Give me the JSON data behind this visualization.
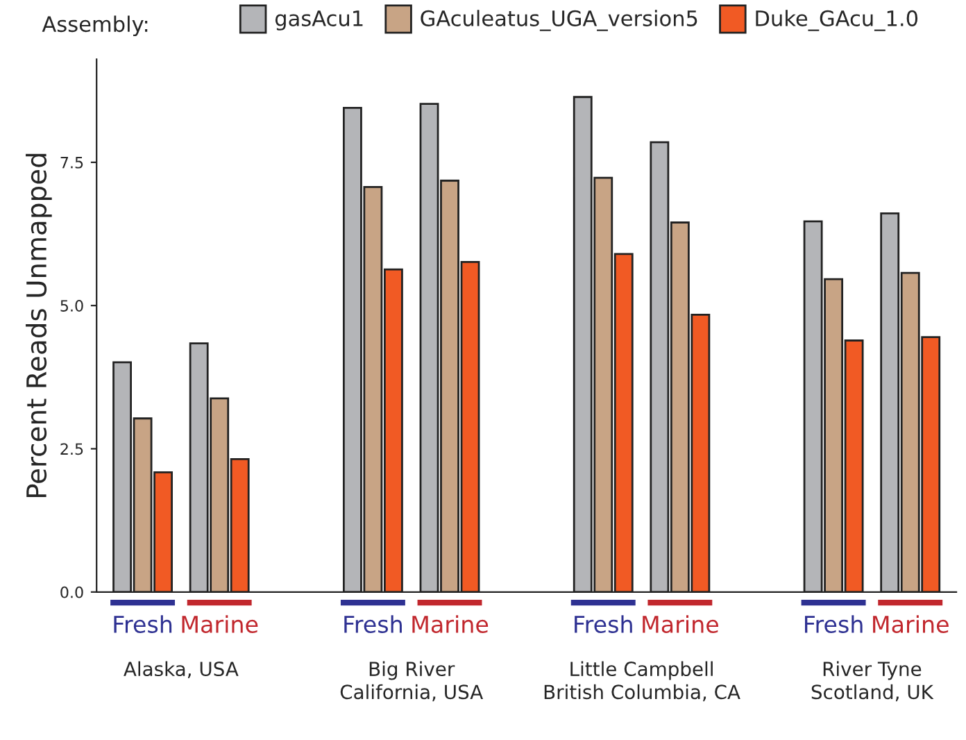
{
  "chart_data": {
    "type": "bar",
    "ylabel": "Percent Reads Unmapped",
    "legend_title": "Assembly:",
    "legend": "top",
    "grid": false,
    "categories": [
      "Fresh",
      "Marine",
      "Fresh",
      "Marine",
      "Fresh",
      "Marine",
      "Fresh",
      "Marine"
    ],
    "series": [
      {
        "name": "gasAcu1",
        "color": "#b4b5b8",
        "values": [
          4.01,
          4.34,
          8.45,
          8.52,
          8.64,
          7.85,
          6.47,
          6.61
        ]
      },
      {
        "name": "GAculeatus_UGA_version5",
        "color": "#c8a485",
        "values": [
          3.03,
          3.38,
          7.07,
          7.18,
          7.23,
          6.45,
          5.46,
          5.57
        ]
      },
      {
        "name": "Duke_GAcu_1.0",
        "color": "#f15a24",
        "values": [
          2.09,
          2.32,
          5.63,
          5.76,
          5.9,
          4.84,
          4.39,
          4.45
        ]
      }
    ],
    "ylim": [
      0,
      9.3
    ],
    "yticks": [
      {
        "value": 0,
        "label": "0.0"
      },
      {
        "value": 2.5,
        "label": "2.5"
      },
      {
        "value": 5,
        "label": "5.0"
      },
      {
        "value": 7.5,
        "label": "7.5"
      }
    ],
    "annotations": [
      "Alaska, USA",
      "Big River\nCalifornia, USA",
      "Little Campbell\nBritish Columbia, CA",
      "River Tyne\nScotland, UK"
    ]
  }
}
